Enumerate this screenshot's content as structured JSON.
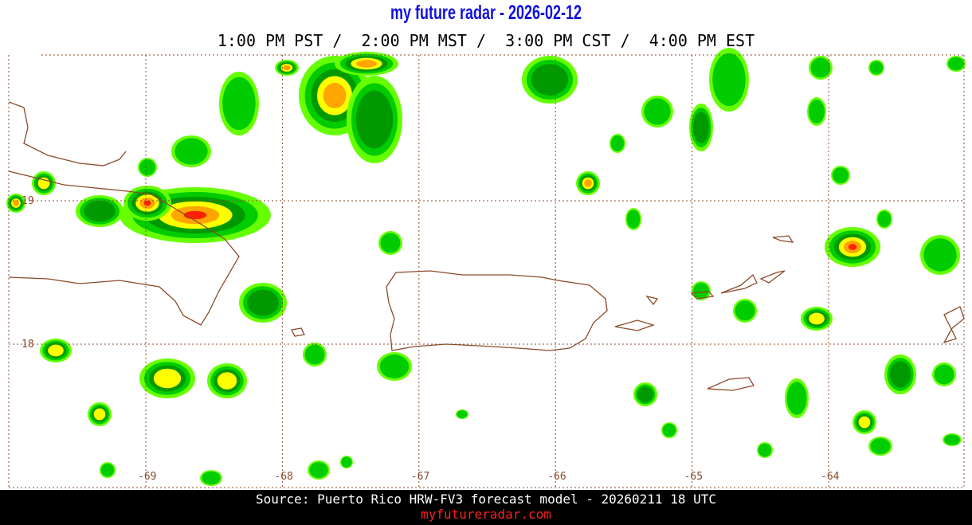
{
  "header": {
    "title": "my future radar - 2026-02-12",
    "subtitle": "1:00 PM PST /  2:00 PM MST /  3:00 PM CST /  4:00 PM EST"
  },
  "map": {
    "lon_ticks": [
      -69,
      -68,
      -67,
      -66,
      -65,
      -64
    ],
    "lat_ticks": [
      19,
      18
    ]
  },
  "footer": {
    "source": "Source: Puerto Rico HRW-FV3 forecast model - 20260211 18 UTC",
    "site": "myfutureradar.com"
  }
}
